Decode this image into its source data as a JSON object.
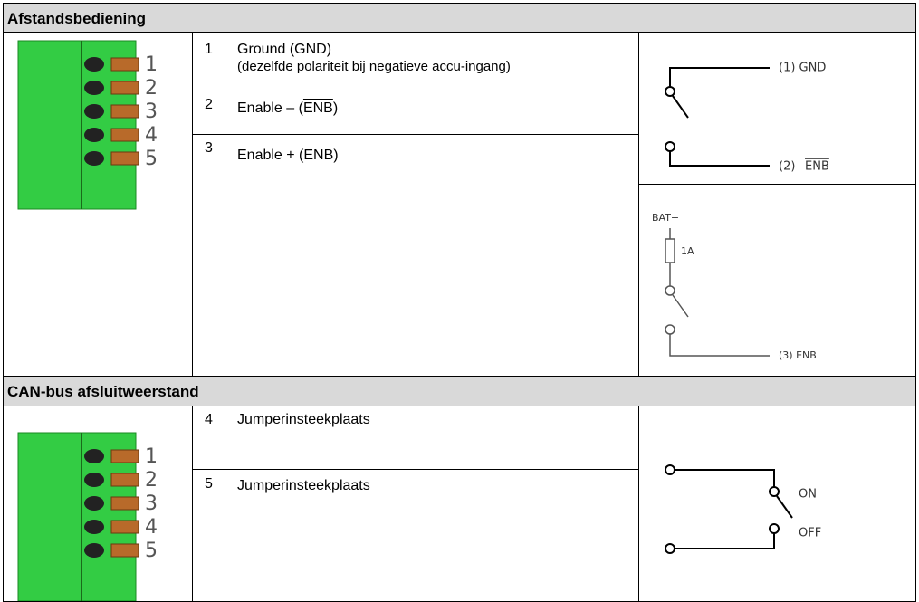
{
  "sections": [
    {
      "title": "Afstandsbediening",
      "connector_labels": [
        "1",
        "2",
        "3",
        "4",
        "5"
      ],
      "rows": [
        {
          "pin": "1",
          "text": "Ground (GND)",
          "subtext": "(dezelfde polariteit bij negatieve accu-ingang)"
        },
        {
          "pin": "2",
          "text": "Enable – (",
          "overline": "ENB",
          "end": ")"
        },
        {
          "pin": "3",
          "text": "Enable + (ENB)"
        }
      ],
      "diagram_labels": {
        "gnd": "(1) GND",
        "enb_neg_prefix": "(2)",
        "enb_neg": "ENB",
        "bat": "BAT+",
        "fuse": "1A",
        "enb_pos": "(3) ENB"
      }
    },
    {
      "title": "CAN-bus afsluitweerstand",
      "connector_labels": [
        "1",
        "2",
        "3",
        "4",
        "5"
      ],
      "rows": [
        {
          "pin": "4",
          "text": "Jumperinsteekplaats"
        },
        {
          "pin": "5",
          "text": "Jumperinsteekplaats"
        }
      ],
      "diagram_labels": {
        "on": "ON",
        "off": "OFF"
      }
    }
  ]
}
